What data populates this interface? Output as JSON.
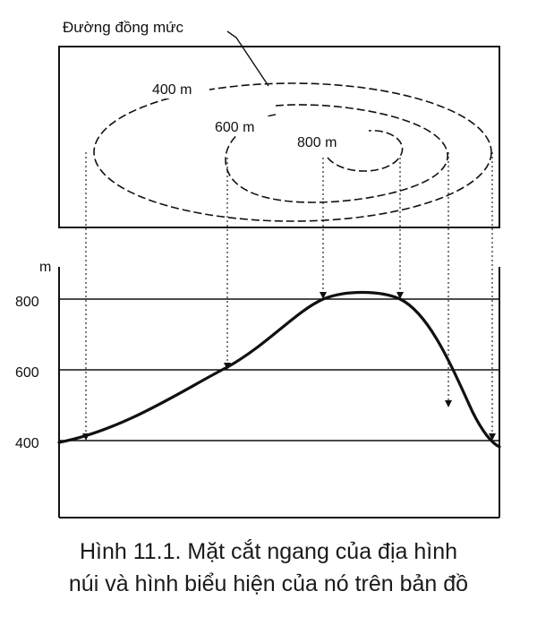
{
  "map": {
    "legend_label": "Đường đồng mức",
    "contours": [
      {
        "label": "400 m"
      },
      {
        "label": "600 m"
      },
      {
        "label": "800 m"
      }
    ]
  },
  "profile": {
    "unit": "m",
    "ticks": [
      "800",
      "600",
      "400"
    ]
  },
  "caption": {
    "line1": "Hình 11.1. Mặt cắt ngang của địa hình",
    "line2": "núi và hình biểu hiện của nó trên bản đồ"
  }
}
